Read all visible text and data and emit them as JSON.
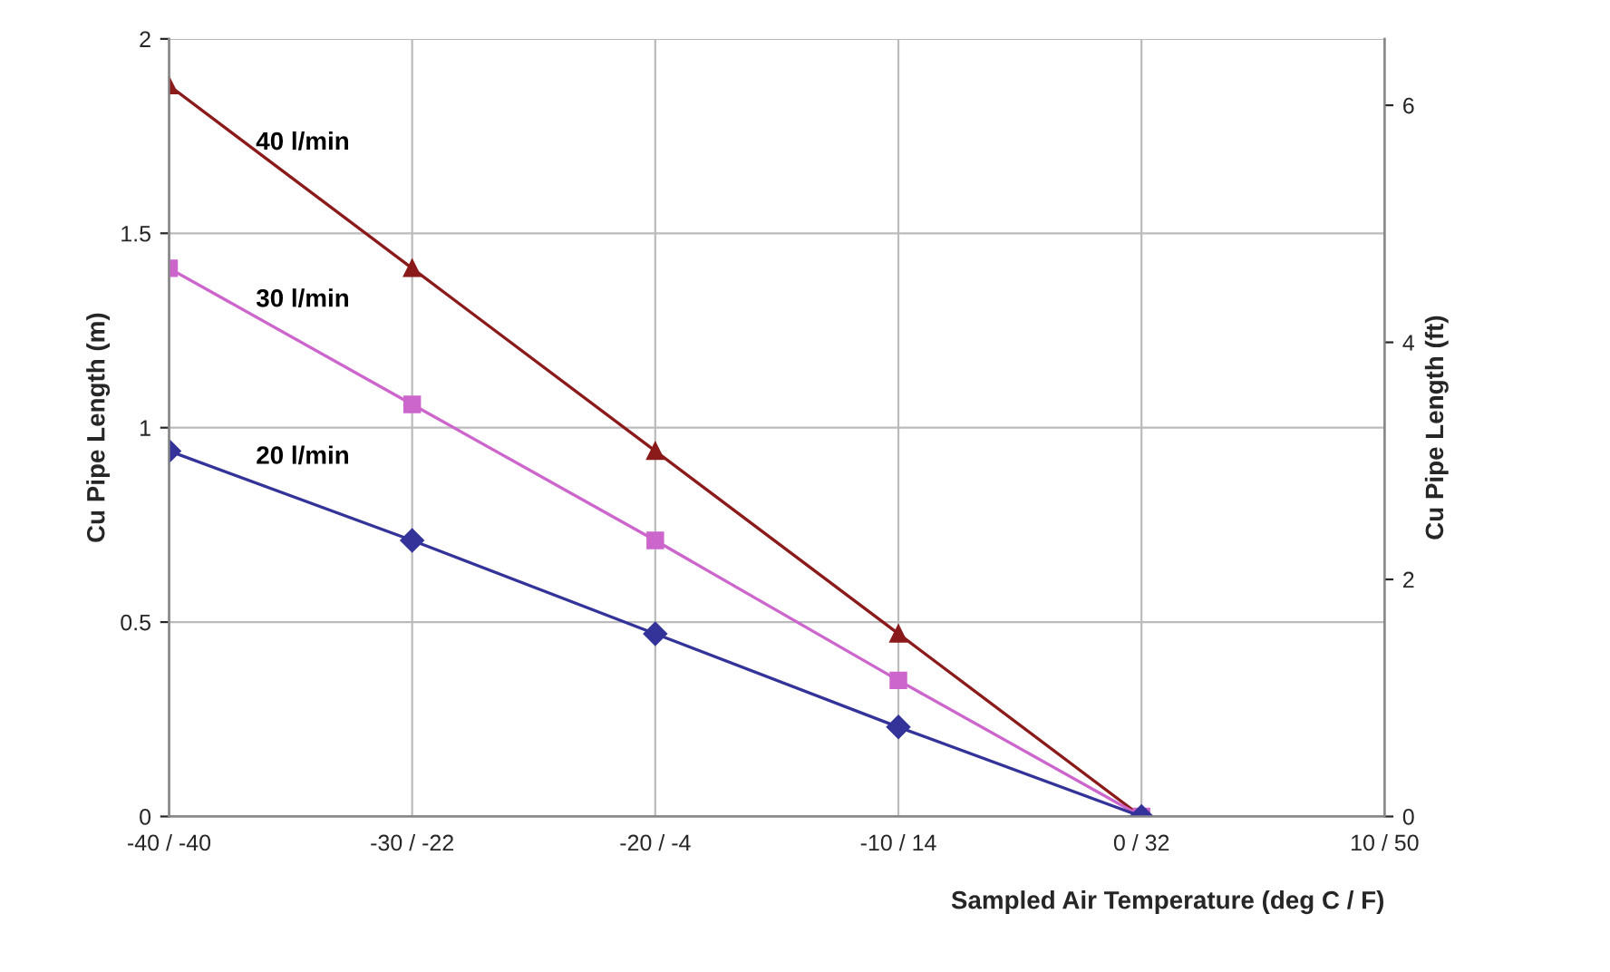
{
  "chart_data": {
    "type": "line",
    "xlabel": "Sampled Air Temperature (deg C / F)",
    "ylabel": "Cu Pipe Length (m)",
    "y2label": "Cu Pipe Length (ft)",
    "categories": [
      "-40 / -40",
      "-30 / -22",
      "-20 / -4",
      "-10 / 14",
      "0 / 32",
      "10 / 50"
    ],
    "series": [
      {
        "name": "40 l/min",
        "color": "#8b1a1a",
        "marker": "triangle",
        "values": [
          1.88,
          1.41,
          0.94,
          0.47,
          0,
          null
        ]
      },
      {
        "name": "30 l/min",
        "color": "#cc66cc",
        "marker": "square",
        "values": [
          1.41,
          1.06,
          0.71,
          0.35,
          0,
          null
        ]
      },
      {
        "name": "20 l/min",
        "color": "#333399",
        "marker": "diamond",
        "values": [
          0.94,
          0.71,
          0.47,
          0.23,
          0,
          null
        ]
      }
    ],
    "ylim": [
      0,
      2
    ],
    "yticks": [
      0,
      0.5,
      1,
      1.5,
      2
    ],
    "y2lim": [
      0,
      6.56
    ],
    "y2ticks": [
      0,
      2,
      4,
      6
    ],
    "grid": true,
    "line_style": "solid"
  }
}
